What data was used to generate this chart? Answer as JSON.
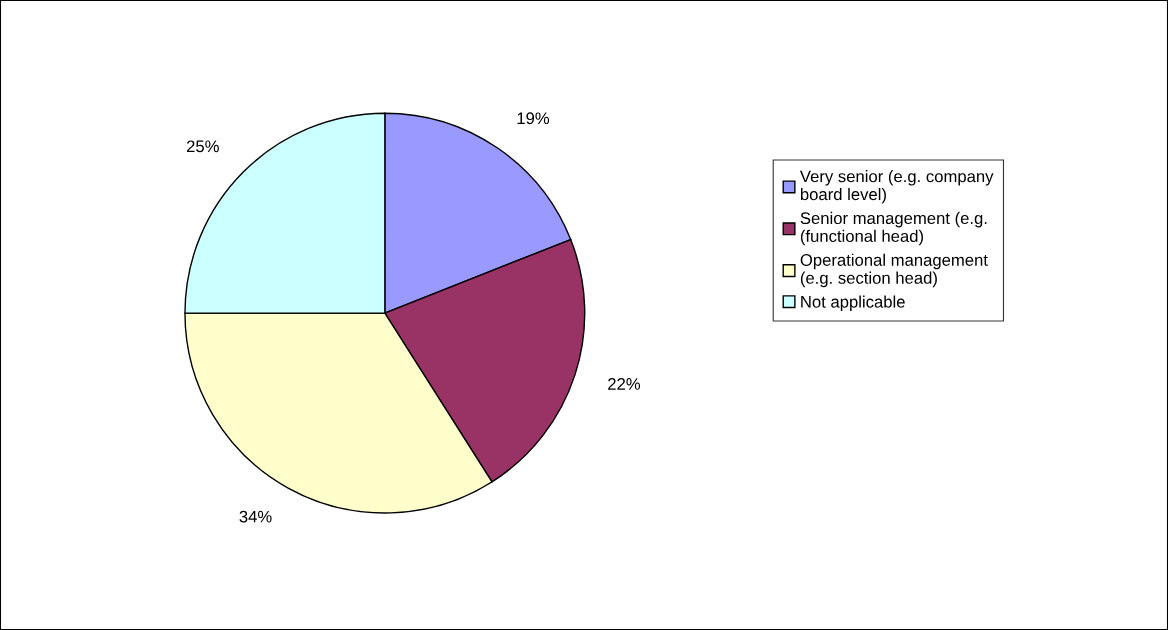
{
  "chart_data": {
    "type": "pie",
    "categories": [
      "Very senior (e.g. company board level)",
      "Senior management (e.g. (functional head)",
      "Operational management (e.g. section head)",
      "Not applicable"
    ],
    "values": [
      19,
      22,
      34,
      25
    ],
    "value_labels": [
      "19%",
      "22%",
      "34%",
      "25%"
    ],
    "colors": [
      "#9999ff",
      "#993366",
      "#ffffcc",
      "#ccffff"
    ],
    "legend": "right"
  }
}
